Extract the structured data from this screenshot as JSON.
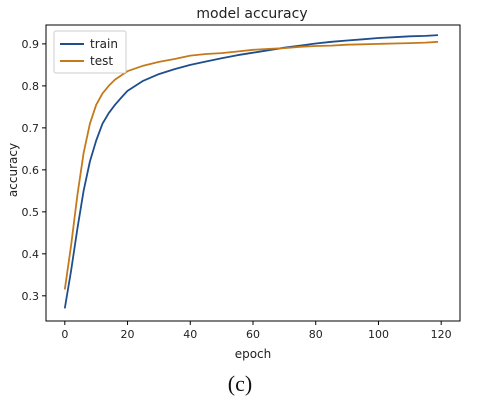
{
  "caption": "(c)",
  "chart_data": {
    "type": "line",
    "title": "model accuracy",
    "xlabel": "epoch",
    "ylabel": "accuracy",
    "xlim": [
      -6,
      126
    ],
    "ylim": [
      0.24,
      0.945
    ],
    "xticks": [
      0,
      20,
      40,
      60,
      80,
      100,
      120
    ],
    "yticks": [
      0.3,
      0.4,
      0.5,
      0.6,
      0.7,
      0.8,
      0.9
    ],
    "grid": false,
    "legend": "top-left",
    "series": [
      {
        "name": "train",
        "color": "#1f4e8c",
        "x": [
          0,
          2,
          4,
          6,
          8,
          10,
          12,
          14,
          16,
          18,
          20,
          25,
          30,
          35,
          40,
          45,
          50,
          55,
          60,
          65,
          70,
          75,
          80,
          85,
          90,
          95,
          100,
          105,
          110,
          115,
          119
        ],
        "y": [
          0.27,
          0.36,
          0.46,
          0.55,
          0.62,
          0.67,
          0.71,
          0.735,
          0.755,
          0.772,
          0.788,
          0.812,
          0.828,
          0.84,
          0.85,
          0.858,
          0.866,
          0.873,
          0.879,
          0.885,
          0.891,
          0.896,
          0.901,
          0.905,
          0.908,
          0.911,
          0.914,
          0.916,
          0.918,
          0.919,
          0.921
        ]
      },
      {
        "name": "test",
        "color": "#c47a1c",
        "x": [
          0,
          2,
          4,
          6,
          8,
          10,
          12,
          14,
          16,
          18,
          20,
          25,
          30,
          35,
          40,
          45,
          50,
          55,
          60,
          65,
          70,
          75,
          80,
          85,
          90,
          95,
          100,
          105,
          110,
          115,
          119
        ],
        "y": [
          0.315,
          0.42,
          0.54,
          0.64,
          0.71,
          0.755,
          0.782,
          0.8,
          0.815,
          0.825,
          0.835,
          0.848,
          0.857,
          0.864,
          0.872,
          0.876,
          0.878,
          0.882,
          0.886,
          0.888,
          0.89,
          0.893,
          0.895,
          0.896,
          0.898,
          0.899,
          0.9,
          0.901,
          0.902,
          0.903,
          0.905
        ]
      }
    ]
  }
}
